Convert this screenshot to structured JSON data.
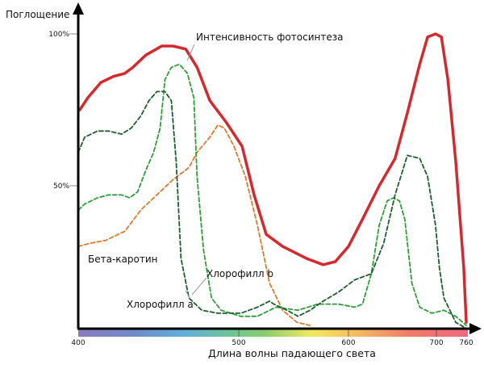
{
  "chart_data": {
    "type": "line",
    "title": "",
    "xlabel": "Длина волны падающего света",
    "ylabel": "Поглощение",
    "x_ticks": [
      400,
      500,
      600,
      700,
      760
    ],
    "y_ticks": [
      {
        "value": 100,
        "label": "100%"
      },
      {
        "value": 50,
        "label": "50%"
      }
    ],
    "xlim": [
      400,
      760
    ],
    "ylim": [
      0,
      100
    ],
    "grid": false,
    "series": [
      {
        "name": "Интенсивность фотосинтеза",
        "color": "#d42a2f",
        "style": "solid",
        "x": [
          401,
          406,
          414,
          422,
          429,
          434,
          442,
          452,
          459,
          467,
          474,
          482,
          492,
          503,
          514,
          525,
          540,
          562,
          577,
          588,
          600,
          616,
          635,
          653,
          667,
          681,
          690,
          699,
          710,
          723,
          739,
          755,
          760
        ],
        "y": [
          75,
          79,
          84,
          86,
          87,
          89,
          93,
          96,
          96,
          95,
          89,
          78,
          71,
          63,
          47,
          34,
          30,
          26,
          24,
          25,
          30,
          39,
          50,
          59,
          74,
          90,
          99,
          100,
          99,
          85,
          58,
          23,
          5
        ]
      },
      {
        "name": "Хлорофилл a",
        "color": "#1e5e2e",
        "style": "dashed",
        "x": [
          400,
          404,
          412,
          419,
          427,
          433,
          439,
          444,
          449,
          454,
          458,
          461,
          464,
          469,
          477,
          487,
          502,
          517,
          528,
          532,
          544,
          554,
          565,
          577,
          591,
          607,
          626,
          640,
          653,
          667,
          681,
          690,
          699,
          706,
          715,
          739,
          760
        ],
        "y": [
          61,
          66,
          68,
          68,
          67,
          69,
          73,
          78,
          81,
          81,
          78,
          58,
          26,
          13,
          9,
          8,
          8,
          10,
          12,
          11,
          9,
          7,
          9,
          12,
          15,
          19,
          21,
          31,
          47,
          60,
          59,
          53,
          37,
          23,
          13,
          5,
          3
        ]
      },
      {
        "name": "Хлорофилл b",
        "color": "#2f9e3a",
        "style": "dashed",
        "x": [
          400,
          404,
          412,
          419,
          427,
          432,
          437,
          442,
          447,
          451,
          454,
          458,
          463,
          468,
          472,
          474,
          478,
          483,
          489,
          502,
          517,
          534,
          554,
          572,
          591,
          607,
          616,
          626,
          635,
          644,
          651,
          658,
          664,
          672,
          681,
          695,
          715,
          739,
          760
        ],
        "y": [
          42,
          44,
          46,
          47,
          47,
          46,
          48,
          55,
          61,
          69,
          85,
          89,
          90,
          87,
          79,
          53,
          29,
          13,
          9,
          7,
          7,
          10,
          9,
          11,
          11,
          10,
          11,
          21,
          37,
          45,
          46,
          45,
          39,
          18,
          10,
          8,
          9,
          7,
          4
        ]
      },
      {
        "name": "Бета-каротин",
        "color": "#e07a30",
        "style": "dashed",
        "x": [
          400,
          407,
          417,
          429,
          439,
          449,
          459,
          469,
          474,
          482,
          487,
          491,
          497,
          506,
          517,
          528,
          540,
          553,
          565
        ],
        "y": [
          30,
          31,
          32,
          35,
          42,
          47,
          52,
          56,
          61,
          66,
          70,
          69,
          63,
          53,
          37,
          18,
          9,
          5,
          4
        ]
      }
    ],
    "annotations": [
      {
        "text": "Интенсивность фотосинтеза",
        "series": 0
      },
      {
        "text": "Бета-каротин",
        "series": 3
      },
      {
        "text": "Хлорофилл b",
        "series": 2
      },
      {
        "text": "Хлорофилл a",
        "series": 1
      }
    ]
  }
}
